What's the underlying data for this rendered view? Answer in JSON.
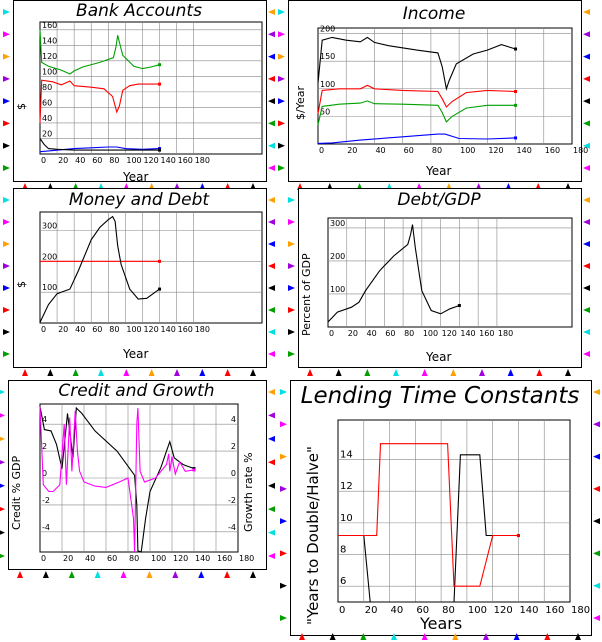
{
  "palette": {
    "black": "#000000",
    "red": "#ff0000",
    "green": "#00a000",
    "blue": "#0000ff",
    "magenta": "#ff00ff",
    "cyan": "#00e0e0",
    "orange": "#ffa000",
    "purple": "#a000e0"
  },
  "marker_colors": [
    "red",
    "black",
    "green",
    "cyan",
    "magenta",
    "orange",
    "purple",
    "blue"
  ],
  "chart_data": [
    {
      "id": "bank",
      "type": "line",
      "title": "Bank Accounts",
      "xlabel": "Year",
      "ylabel": "$",
      "xlim": [
        0,
        260
      ],
      "ylim": [
        0,
        170
      ],
      "xticks": [
        0,
        20,
        40,
        60,
        80,
        100,
        120,
        140,
        160,
        180
      ],
      "yticks": [
        20,
        40,
        60,
        80,
        100,
        120,
        140,
        160
      ],
      "grid": true,
      "series": [
        {
          "color": "green",
          "points": [
            [
              0,
              160
            ],
            [
              2,
              118
            ],
            [
              10,
              113
            ],
            [
              25,
              108
            ],
            [
              33,
              104
            ],
            [
              35,
              103
            ],
            [
              40,
              107
            ],
            [
              50,
              112
            ],
            [
              70,
              118
            ],
            [
              86,
              124
            ],
            [
              89,
              138
            ],
            [
              91,
              153
            ],
            [
              93,
              144
            ],
            [
              97,
              127
            ],
            [
              110,
              113
            ],
            [
              120,
              110
            ],
            [
              130,
              112
            ],
            [
              140,
              115
            ]
          ]
        },
        {
          "color": "red",
          "points": [
            [
              0,
              40
            ],
            [
              2,
              95
            ],
            [
              15,
              93
            ],
            [
              25,
              89
            ],
            [
              35,
              94
            ],
            [
              40,
              88
            ],
            [
              60,
              86
            ],
            [
              75,
              84
            ],
            [
              85,
              74
            ],
            [
              90,
              54
            ],
            [
              93,
              62
            ],
            [
              97,
              82
            ],
            [
              105,
              88
            ],
            [
              115,
              90
            ],
            [
              140,
              90
            ]
          ]
        },
        {
          "color": "blue",
          "points": [
            [
              0,
              3
            ],
            [
              10,
              4
            ],
            [
              40,
              7
            ],
            [
              60,
              8
            ],
            [
              80,
              9
            ],
            [
              90,
              9
            ],
            [
              100,
              7
            ],
            [
              120,
              6
            ],
            [
              140,
              7
            ]
          ]
        },
        {
          "color": "black",
          "points": [
            [
              0,
              20
            ],
            [
              5,
              12
            ],
            [
              10,
              7
            ],
            [
              20,
              6
            ],
            [
              40,
              5
            ],
            [
              60,
              5
            ],
            [
              80,
              5
            ],
            [
              100,
              5
            ],
            [
              140,
              5
            ]
          ]
        }
      ]
    },
    {
      "id": "income",
      "type": "line",
      "title": "Income",
      "xlabel": "Year",
      "ylabel": "$/Year",
      "xlim": [
        0,
        180
      ],
      "ylim": [
        0,
        210
      ],
      "xticks": [
        0,
        20,
        40,
        60,
        80,
        100,
        120,
        140,
        160,
        180
      ],
      "yticks": [
        50,
        100,
        150,
        200
      ],
      "grid": true,
      "series": [
        {
          "color": "black",
          "points": [
            [
              0,
              110
            ],
            [
              3,
              188
            ],
            [
              10,
              193
            ],
            [
              20,
              188
            ],
            [
              30,
              185
            ],
            [
              35,
              193
            ],
            [
              40,
              184
            ],
            [
              50,
              178
            ],
            [
              70,
              170
            ],
            [
              85,
              165
            ],
            [
              88,
              140
            ],
            [
              91,
              100
            ],
            [
              93,
              115
            ],
            [
              98,
              145
            ],
            [
              110,
              163
            ],
            [
              120,
              170
            ],
            [
              130,
              180
            ],
            [
              140,
              172
            ]
          ]
        },
        {
          "color": "red",
          "points": [
            [
              0,
              55
            ],
            [
              3,
              97
            ],
            [
              15,
              100
            ],
            [
              30,
              100
            ],
            [
              35,
              106
            ],
            [
              40,
              100
            ],
            [
              60,
              97
            ],
            [
              85,
              95
            ],
            [
              88,
              82
            ],
            [
              91,
              67
            ],
            [
              95,
              77
            ],
            [
              105,
              93
            ],
            [
              120,
              97
            ],
            [
              140,
              95
            ]
          ]
        },
        {
          "color": "green",
          "points": [
            [
              0,
              35
            ],
            [
              3,
              68
            ],
            [
              15,
              72
            ],
            [
              30,
              74
            ],
            [
              35,
              78
            ],
            [
              40,
              73
            ],
            [
              60,
              72
            ],
            [
              85,
              70
            ],
            [
              88,
              57
            ],
            [
              91,
              40
            ],
            [
              95,
              50
            ],
            [
              105,
              65
            ],
            [
              120,
              70
            ],
            [
              140,
              70
            ]
          ]
        },
        {
          "color": "blue",
          "points": [
            [
              0,
              1
            ],
            [
              10,
              2
            ],
            [
              30,
              7
            ],
            [
              60,
              13
            ],
            [
              85,
              18
            ],
            [
              90,
              18
            ],
            [
              100,
              10
            ],
            [
              120,
              9
            ],
            [
              140,
              11
            ]
          ]
        }
      ]
    },
    {
      "id": "money",
      "type": "line",
      "title": "Money and Debt",
      "xlabel": "Year",
      "ylabel": "$",
      "xlim": [
        0,
        260
      ],
      "ylim": [
        0,
        360
      ],
      "xticks": [
        0,
        20,
        40,
        60,
        80,
        100,
        120,
        140,
        160,
        180
      ],
      "yticks": [
        100,
        200,
        300
      ],
      "grid": true,
      "series": [
        {
          "color": "red",
          "points": [
            [
              0,
              200
            ],
            [
              140,
              200
            ]
          ]
        },
        {
          "color": "black",
          "points": [
            [
              0,
              2
            ],
            [
              10,
              60
            ],
            [
              20,
              95
            ],
            [
              30,
              105
            ],
            [
              35,
              110
            ],
            [
              45,
              170
            ],
            [
              60,
              270
            ],
            [
              70,
              310
            ],
            [
              80,
              335
            ],
            [
              85,
              345
            ],
            [
              88,
              330
            ],
            [
              91,
              250
            ],
            [
              95,
              190
            ],
            [
              105,
              110
            ],
            [
              115,
              78
            ],
            [
              125,
              80
            ],
            [
              140,
              110
            ]
          ]
        }
      ]
    },
    {
      "id": "debtgdp",
      "type": "line",
      "title": "Debt/GDP",
      "xlabel": "Year",
      "ylabel": "Percent of GDP",
      "xlim": [
        0,
        260
      ],
      "ylim": [
        0,
        330
      ],
      "xticks": [
        0,
        20,
        40,
        60,
        80,
        100,
        120,
        140,
        160,
        180
      ],
      "yticks": [
        100,
        200,
        300
      ],
      "grid": true,
      "series": [
        {
          "color": "black",
          "points": [
            [
              0,
              15
            ],
            [
              10,
              45
            ],
            [
              25,
              60
            ],
            [
              33,
              75
            ],
            [
              40,
              110
            ],
            [
              55,
              170
            ],
            [
              70,
              215
            ],
            [
              85,
              250
            ],
            [
              88,
              280
            ],
            [
              90,
              310
            ],
            [
              93,
              240
            ],
            [
              100,
              110
            ],
            [
              110,
              50
            ],
            [
              120,
              40
            ],
            [
              130,
              55
            ],
            [
              140,
              65
            ]
          ]
        }
      ]
    },
    {
      "id": "credit",
      "type": "line",
      "title": "Credit and Growth",
      "xlabel": "",
      "ylabel": "Credit % GDP",
      "y2label": "Growth rate %",
      "xlim": [
        0,
        180
      ],
      "ylim": [
        -5.5,
        5.5
      ],
      "xticks": [
        0,
        20,
        40,
        60,
        80,
        100,
        120,
        140,
        160,
        180
      ],
      "yticks": [
        -4,
        -2,
        0,
        2,
        4
      ],
      "y2ticks": [
        -4,
        -2,
        0,
        2,
        4
      ],
      "grid": true,
      "series": [
        {
          "color": "black",
          "points": [
            [
              0,
              5.3
            ],
            [
              4,
              3.6
            ],
            [
              10,
              3.5
            ],
            [
              15,
              2.5
            ],
            [
              20,
              0.7
            ],
            [
              25,
              4.8
            ],
            [
              30,
              1.5
            ],
            [
              33,
              5.2
            ],
            [
              38,
              4.8
            ],
            [
              50,
              3.5
            ],
            [
              70,
              2
            ],
            [
              86,
              0.2
            ],
            [
              88,
              -2
            ],
            [
              89,
              -5.4
            ],
            [
              92,
              -5.5
            ],
            [
              96,
              -3
            ],
            [
              100,
              -1
            ],
            [
              110,
              0.8
            ],
            [
              115,
              2
            ],
            [
              118,
              2.7
            ],
            [
              122,
              1.5
            ],
            [
              130,
              1
            ],
            [
              140,
              0.7
            ]
          ]
        },
        {
          "color": "magenta",
          "points": [
            [
              0,
              5.3
            ],
            [
              3,
              -0.5
            ],
            [
              8,
              -1
            ],
            [
              12,
              -1
            ],
            [
              18,
              -0.5
            ],
            [
              22,
              4
            ],
            [
              24,
              -0.5
            ],
            [
              27,
              4.5
            ],
            [
              29,
              0.5
            ],
            [
              32,
              5
            ],
            [
              34,
              2
            ],
            [
              36,
              0.5
            ],
            [
              40,
              -0.3
            ],
            [
              50,
              -0.6
            ],
            [
              60,
              -0.7
            ],
            [
              72,
              -0.3
            ],
            [
              80,
              0
            ],
            [
              85,
              -3
            ],
            [
              86,
              -5.5
            ],
            [
              88,
              4
            ],
            [
              89,
              5.2
            ],
            [
              91,
              0.5
            ],
            [
              95,
              -0.3
            ],
            [
              105,
              0
            ],
            [
              115,
              1
            ],
            [
              117,
              1.8
            ],
            [
              118,
              0.5
            ],
            [
              120,
              1.6
            ],
            [
              123,
              0.3
            ],
            [
              127,
              1.2
            ],
            [
              132,
              0.5
            ],
            [
              140,
              0.6
            ]
          ]
        }
      ]
    },
    {
      "id": "lending",
      "type": "line",
      "title": "Lending Time Constants",
      "xlabel": "Years",
      "ylabel": "\"Years to Double/Halve\"",
      "xlim": [
        0,
        180
      ],
      "ylim": [
        5,
        16.5
      ],
      "xticks": [
        0,
        20,
        40,
        60,
        80,
        100,
        120,
        140,
        160,
        180
      ],
      "yticks": [
        6,
        8,
        10,
        12,
        14
      ],
      "grid": true,
      "series": [
        {
          "color": "black",
          "points": [
            [
              0,
              9.2
            ],
            [
              20,
              9.2
            ],
            [
              25,
              5
            ],
            [
              85,
              5
            ],
            [
              90,
              5
            ],
            [
              95,
              14.3
            ],
            [
              110,
              14.3
            ],
            [
              115,
              9.2
            ],
            [
              140,
              9.2
            ]
          ]
        },
        {
          "color": "red",
          "points": [
            [
              0,
              9.2
            ],
            [
              30,
              9.2
            ],
            [
              33,
              15
            ],
            [
              85,
              15
            ],
            [
              90,
              6
            ],
            [
              110,
              6
            ],
            [
              120,
              9.2
            ],
            [
              140,
              9.2
            ]
          ]
        }
      ]
    }
  ]
}
